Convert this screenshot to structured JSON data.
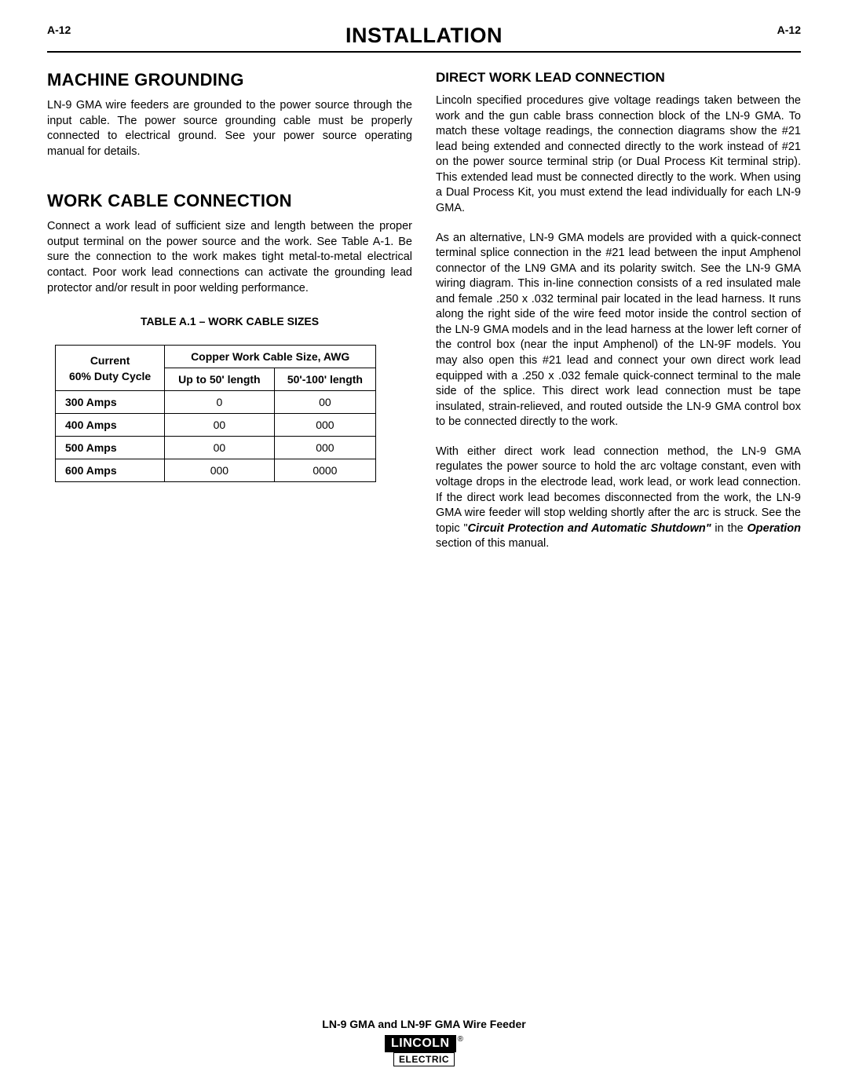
{
  "header": {
    "page_left": "A-12",
    "page_right": "A-12",
    "title": "INSTALLATION"
  },
  "left_column": {
    "section1": {
      "heading": "MACHINE GROUNDING",
      "para1": "LN-9 GMA wire feeders are grounded to the power source through the input cable. The power source grounding cable must be properly connected to electrical ground. See your power source operating manual for details."
    },
    "section2": {
      "heading": "WORK CABLE CONNECTION",
      "para1": "Connect a work lead of sufficient size and length between the proper output terminal on the power source and the work. See Table A-1. Be sure the connection to the work makes tight metal-to-metal electrical contact. Poor work lead connections can activate the grounding lead protector and/or result in poor welding performance."
    },
    "table": {
      "caption": "TABLE A.1 – WORK CABLE SIZES",
      "header_left_top": "Current",
      "header_left_bottom": "60% Duty Cycle",
      "header_right_span": "Copper Work Cable Size, AWG",
      "header_sub1": "Up to 50' length",
      "header_sub2": "50'-100' length",
      "rows": [
        {
          "label": "300 Amps",
          "c1": "0",
          "c2": "00"
        },
        {
          "label": "400 Amps",
          "c1": "00",
          "c2": "000"
        },
        {
          "label": "500 Amps",
          "c1": "00",
          "c2": "000"
        },
        {
          "label": "600 Amps",
          "c1": "000",
          "c2": "0000"
        }
      ]
    }
  },
  "right_column": {
    "section1": {
      "heading": "DIRECT WORK LEAD CONNECTION",
      "para1": "Lincoln specified procedures give voltage readings taken between the work and the gun cable brass connection block of the LN-9 GMA. To match these voltage readings, the connection diagrams show the #21 lead being extended and connected directly to the work instead of #21 on the power source terminal strip (or Dual Process Kit terminal strip). This extended lead must be connected directly to the work. When using a Dual Process Kit, you must extend the lead individually for each LN-9 GMA.",
      "para2": "As an alternative, LN-9 GMA models are provided with a quick-connect terminal splice connection in the #21 lead between the input Amphenol connector of the LN9 GMA and its polarity switch. See the LN-9 GMA wiring diagram. This in-line connection consists of a red insulated male and female .250 x .032 terminal pair located in the lead harness. It runs along the right side of the wire feed motor inside the control section of the LN-9 GMA models and in the lead harness at the lower left corner of the control box (near the input Amphenol) of the LN-9F models. You may also open this #21 lead and connect your own direct work lead equipped with a .250 x .032 female quick-connect terminal to the male side of the splice. This direct work lead connection must be tape insulated, strain-relieved, and routed outside the LN-9 GMA control box to be connected directly to the work.",
      "para3_a": "With either direct work lead connection method, the LN-9 GMA regulates the power source to hold the arc voltage constant, even with voltage drops in the electrode lead, work lead, or work lead connection. If the direct work lead becomes disconnected from the work, the LN-9 GMA wire feeder will stop welding shortly after the arc is struck. See the topic \"",
      "para3_b": "Circuit Protection and Automatic Shutdown\"",
      "para3_c": " in the ",
      "para3_d": "Operation",
      "para3_e": " section of this manual."
    }
  },
  "footer": {
    "title": "LN-9 GMA and LN-9F GMA Wire Feeder",
    "logo_top": "LINCOLN",
    "logo_reg": "®",
    "logo_bottom": "ELECTRIC"
  }
}
